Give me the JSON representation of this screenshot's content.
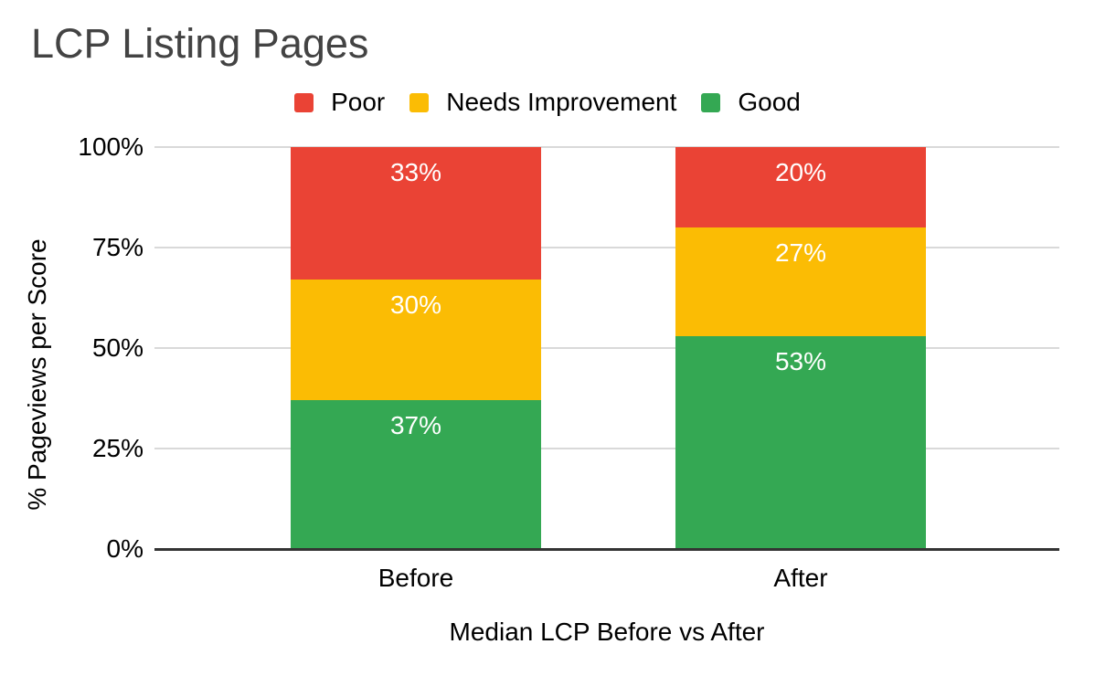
{
  "chart_data": {
    "type": "bar",
    "stacked": true,
    "title": "LCP Listing Pages",
    "xlabel": "Median LCP Before vs After",
    "ylabel": "% Pageviews per Score",
    "categories": [
      "Before",
      "After"
    ],
    "series": [
      {
        "name": "Poor",
        "color": "#EA4335",
        "values": [
          33,
          20
        ]
      },
      {
        "name": "Needs Improvement",
        "color": "#FBBC04",
        "values": [
          30,
          27
        ]
      },
      {
        "name": "Good",
        "color": "#34A853",
        "values": [
          37,
          53
        ]
      }
    ],
    "value_label_suffix": "%",
    "ylim": [
      0,
      100
    ],
    "yticks": [
      {
        "value": 0,
        "label": "0%"
      },
      {
        "value": 25,
        "label": "25%"
      },
      {
        "value": 50,
        "label": "50%"
      },
      {
        "value": 75,
        "label": "75%"
      },
      {
        "value": 100,
        "label": "100%"
      }
    ],
    "grid": true,
    "legend_position": "top",
    "colors": {
      "title_text": "#434343",
      "axis_text": "#000000",
      "gridline": "#d9d9d9",
      "baseline": "#333333",
      "value_label_text": "#ffffff"
    }
  }
}
